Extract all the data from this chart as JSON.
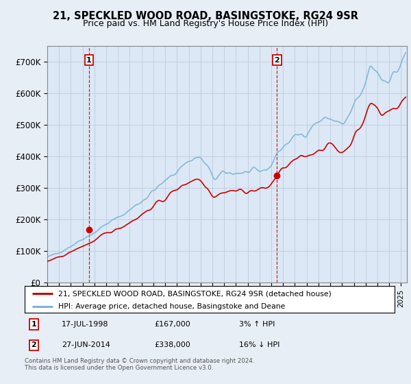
{
  "title": "21, SPECKLED WOOD ROAD, BASINGSTOKE, RG24 9SR",
  "subtitle": "Price paid vs. HM Land Registry's House Price Index (HPI)",
  "bg_color": "#e8eef5",
  "plot_bg_color": "#dce8f5",
  "grid_color": "#c0cfe0",
  "hpi_color": "#7ab4d8",
  "price_color": "#cc0000",
  "marker_color": "#cc0000",
  "sale1_year": 1998.54,
  "sale1_price": 167000,
  "sale1_label": "1",
  "sale1_date": "17-JUL-1998",
  "sale1_hpi_pct": "3%",
  "sale1_hpi_dir": "↑",
  "sale2_year": 2014.49,
  "sale2_price": 338000,
  "sale2_label": "2",
  "sale2_date": "27-JUN-2014",
  "sale2_hpi_pct": "16%",
  "sale2_hpi_dir": "↓",
  "ylim_min": 0,
  "ylim_max": 750000,
  "xmin": 1995,
  "xmax": 2025.5,
  "legend_line1": "21, SPECKLED WOOD ROAD, BASINGSTOKE, RG24 9SR (detached house)",
  "legend_line2": "HPI: Average price, detached house, Basingstoke and Deane",
  "footnote": "Contains HM Land Registry data © Crown copyright and database right 2024.\nThis data is licensed under the Open Government Licence v3.0."
}
